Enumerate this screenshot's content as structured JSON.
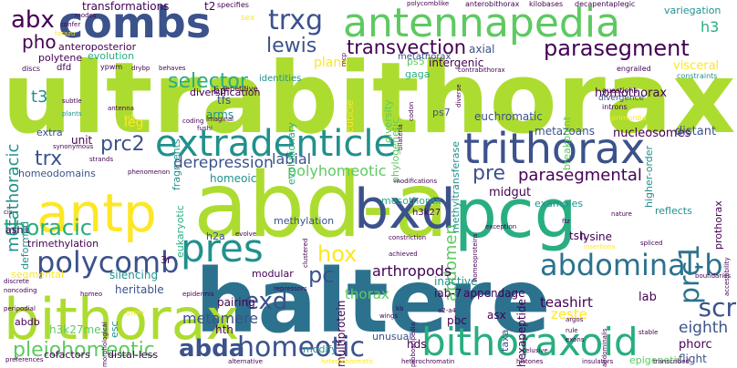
{
  "palette": [
    "#440154",
    "#3b528b",
    "#2c728e",
    "#21918c",
    "#28ae80",
    "#5ec962",
    "#addc30",
    "#fde725"
  ],
  "words": [
    {
      "text": "ultrabithorax",
      "color": "#addc30"
    },
    {
      "text": "haltere",
      "color": "#2c728e"
    },
    {
      "text": "abd-a",
      "color": "#addc30"
    },
    {
      "text": "bithorax",
      "color": "#addc30"
    },
    {
      "text": "antennapedia",
      "color": "#5ec962"
    },
    {
      "text": "combs",
      "color": "#3b528b"
    },
    {
      "text": "pcg",
      "color": "#28ae80"
    },
    {
      "text": "bxd",
      "color": "#3b528b"
    },
    {
      "text": "antp",
      "color": "#fde725"
    },
    {
      "text": "trithorax",
      "color": "#3b528b"
    },
    {
      "text": "extradenticle",
      "color": "#21918c"
    },
    {
      "text": "bithoraxoid",
      "color": "#28ae80"
    },
    {
      "text": "pres",
      "color": "#21918c"
    },
    {
      "text": "abdominal-b",
      "color": "#2c728e"
    },
    {
      "text": "polycomb",
      "color": "#3b528b"
    },
    {
      "text": "parasegment",
      "color": "#440154"
    },
    {
      "text": "homeotic",
      "color": "#3b528b"
    },
    {
      "text": "abda",
      "color": "#3b528b"
    },
    {
      "text": "pleiohomeotic",
      "color": "#5ec962"
    },
    {
      "text": "thoracic",
      "color": "#28ae80"
    },
    {
      "text": "hox",
      "color": "#fde725"
    },
    {
      "text": "trxg",
      "color": "#3b528b"
    },
    {
      "text": "selector",
      "color": "#28ae80"
    },
    {
      "text": "transvection",
      "color": "#440154"
    },
    {
      "text": "prc2",
      "color": "#3b528b"
    },
    {
      "text": "trx",
      "color": "#3b528b"
    },
    {
      "text": "pc",
      "color": "#3b528b"
    },
    {
      "text": "exd",
      "color": "#3b528b"
    },
    {
      "text": "prc1",
      "color": "#2c728e"
    },
    {
      "text": "scr",
      "color": "#3b528b"
    },
    {
      "text": "abx",
      "color": "#440154"
    },
    {
      "text": "pho",
      "color": "#440154"
    },
    {
      "text": "lewis",
      "color": "#3b528b"
    },
    {
      "text": "metathoracic",
      "color": "#21918c"
    },
    {
      "text": "derepression",
      "color": "#3b528b"
    },
    {
      "text": "polyhomeotic",
      "color": "#5ec962"
    },
    {
      "text": "labial",
      "color": "#3b528b"
    },
    {
      "text": "parasegmental",
      "color": "#440154"
    },
    {
      "text": "pre",
      "color": "#3b528b"
    },
    {
      "text": "abdomen",
      "color": "#5ec962"
    },
    {
      "text": "metamere",
      "color": "#3b528b"
    },
    {
      "text": "eighth",
      "color": "#3b528b"
    },
    {
      "text": "arthropods",
      "color": "#440154"
    },
    {
      "text": "teashirt",
      "color": "#440154"
    },
    {
      "text": "thorax",
      "color": "#5ec962"
    },
    {
      "text": "zeste",
      "color": "#fde725"
    },
    {
      "text": "transformations",
      "color": "#440154"
    },
    {
      "text": "homothorax",
      "color": "#440154"
    },
    {
      "text": "euchromatic",
      "color": "#3b528b"
    },
    {
      "text": "metazoans",
      "color": "#3b528b"
    },
    {
      "text": "nucleosomes",
      "color": "#440154"
    },
    {
      "text": "distant",
      "color": "#3b528b"
    },
    {
      "text": "midgut",
      "color": "#440154"
    },
    {
      "text": "lysine",
      "color": "#440154"
    },
    {
      "text": "hexapeptide",
      "color": "#440154"
    },
    {
      "text": "multiprotein",
      "color": "#440154"
    },
    {
      "text": "hth",
      "color": "#440154"
    },
    {
      "text": "h3k27me3",
      "color": "#5ec962"
    },
    {
      "text": "cofactors",
      "color": "#440154"
    },
    {
      "text": "distal-less",
      "color": "#440154"
    },
    {
      "text": "prothorax",
      "color": "#440154"
    },
    {
      "text": "phorc",
      "color": "#440154"
    },
    {
      "text": "flight",
      "color": "#3b528b"
    },
    {
      "text": "epigenetic",
      "color": "#5ec962"
    },
    {
      "text": "lab",
      "color": "#440154"
    },
    {
      "text": "h3",
      "color": "#28ae80"
    },
    {
      "text": "t2",
      "color": "#440154"
    },
    {
      "text": "t3",
      "color": "#21918c"
    },
    {
      "text": "unit",
      "color": "#440154"
    },
    {
      "text": "homeoic",
      "color": "#21918c"
    },
    {
      "text": "homeodomains",
      "color": "#3b528b"
    },
    {
      "text": "ash1",
      "color": "#440154"
    },
    {
      "text": "deformed",
      "color": "#21918c"
    },
    {
      "text": "visceral",
      "color": "#fde725"
    },
    {
      "text": "higher-order",
      "color": "#21918c"
    },
    {
      "text": "variegation",
      "color": "#21918c"
    },
    {
      "text": "intergenic",
      "color": "#440154"
    },
    {
      "text": "plans",
      "color": "#fde725"
    },
    {
      "text": "evolution",
      "color": "#28ae80"
    },
    {
      "text": "diversification",
      "color": "#440154"
    },
    {
      "text": "anteroposterior",
      "color": "#440154"
    },
    {
      "text": "polytene",
      "color": "#440154"
    },
    {
      "text": "leg",
      "color": "#fde725"
    },
    {
      "text": "extra",
      "color": "#3b528b"
    },
    {
      "text": "arms",
      "color": "#21918c"
    },
    {
      "text": "tfs",
      "color": "#3b528b"
    },
    {
      "text": "bp",
      "color": "#440154"
    },
    {
      "text": "fragments",
      "color": "#21918c"
    },
    {
      "text": "ps7",
      "color": "#3b528b"
    },
    {
      "text": "ps5",
      "color": "#5ec962"
    },
    {
      "text": "gaga",
      "color": "#28ae80"
    },
    {
      "text": "diversity",
      "color": "#5ec962"
    },
    {
      "text": "phylogenetic",
      "color": "#5ec962"
    },
    {
      "text": "cuticle",
      "color": "#fde725"
    },
    {
      "text": "evolutionary",
      "color": "#28ae80"
    },
    {
      "text": "methyltransferase",
      "color": "#21918c"
    },
    {
      "text": "metathorax",
      "color": "#3b528b"
    },
    {
      "text": "axial",
      "color": "#3b528b"
    },
    {
      "text": "methylation",
      "color": "#3b528b"
    },
    {
      "text": "h3k27",
      "color": "#440154"
    },
    {
      "text": "mesothorax",
      "color": "#28ae80"
    },
    {
      "text": "eukaryotic",
      "color": "#28ae80"
    },
    {
      "text": "h2a",
      "color": "#3b528b"
    },
    {
      "text": "trimethylation",
      "color": "#440154"
    },
    {
      "text": "segmental",
      "color": "#fde725"
    },
    {
      "text": "silencing",
      "color": "#21918c"
    },
    {
      "text": "heritable",
      "color": "#3b528b"
    },
    {
      "text": "modular",
      "color": "#440154"
    },
    {
      "text": "pairing",
      "color": "#440154"
    },
    {
      "text": "inactive",
      "color": "#21918c"
    },
    {
      "text": "iab-7",
      "color": "#440154"
    },
    {
      "text": "appendage",
      "color": "#440154"
    },
    {
      "text": "tsh",
      "color": "#440154"
    },
    {
      "text": "examples",
      "color": "#21918c"
    },
    {
      "text": "reflects",
      "color": "#21918c"
    },
    {
      "text": "pbc",
      "color": "#440154"
    },
    {
      "text": "asx",
      "color": "#440154"
    },
    {
      "text": "taxa",
      "color": "#3b528b"
    },
    {
      "text": "hds",
      "color": "#440154"
    },
    {
      "text": "unusual",
      "color": "#3b528b"
    },
    {
      "text": "modify",
      "color": "#21918c"
    },
    {
      "text": "abdb",
      "color": "#440154"
    },
    {
      "text": "esc",
      "color": "#21918c"
    },
    {
      "text": "3r",
      "color": "#440154"
    },
    {
      "text": "repetitive",
      "color": "#440154"
    },
    {
      "text": "identities",
      "color": "#21918c"
    },
    {
      "text": "specifies",
      "color": "#440154"
    },
    {
      "text": "kilobases",
      "color": "#440154"
    },
    {
      "text": "decapentaplegic",
      "color": "#440154"
    },
    {
      "text": "polycomblike",
      "color": "#440154"
    },
    {
      "text": "anterobithorax",
      "color": "#440154"
    },
    {
      "text": "contrabithorax",
      "color": "#440154"
    },
    {
      "text": "engrailed",
      "color": "#440154"
    },
    {
      "text": "constraints",
      "color": "#21918c"
    },
    {
      "text": "breakpoint",
      "color": "#5ec962"
    },
    {
      "text": "questions",
      "color": "#440154"
    },
    {
      "text": "divergence",
      "color": "#3b528b"
    },
    {
      "text": "introns",
      "color": "#440154"
    },
    {
      "text": "primordia",
      "color": "#fde725"
    },
    {
      "text": "modes",
      "color": "#440154"
    },
    {
      "text": "confer",
      "color": "#440154"
    },
    {
      "text": "tarazu",
      "color": "#fde725"
    },
    {
      "text": "discs",
      "color": "#440154"
    },
    {
      "text": "dfd",
      "color": "#440154"
    },
    {
      "text": "ypwm",
      "color": "#440154"
    },
    {
      "text": "drybp",
      "color": "#440154"
    },
    {
      "text": "behaves",
      "color": "#440154"
    },
    {
      "text": "subtle",
      "color": "#440154"
    },
    {
      "text": "plants",
      "color": "#21918c"
    },
    {
      "text": "antenna",
      "color": "#440154"
    },
    {
      "text": "scb",
      "color": "#fde725"
    },
    {
      "text": "fushi",
      "color": "#440154"
    },
    {
      "text": "coding",
      "color": "#440154"
    },
    {
      "text": "imaginal",
      "color": "#440154"
    },
    {
      "text": "synonymous",
      "color": "#440154"
    },
    {
      "text": "strands",
      "color": "#440154"
    },
    {
      "text": "phenomenon",
      "color": "#440154"
    },
    {
      "text": "evolve",
      "color": "#440154"
    },
    {
      "text": "clustered",
      "color": "#440154"
    },
    {
      "text": "modifications",
      "color": "#440154"
    },
    {
      "text": "constriction",
      "color": "#440154"
    },
    {
      "text": "achieved",
      "color": "#440154"
    },
    {
      "text": "repressors",
      "color": "#440154"
    },
    {
      "text": "homeoproteins",
      "color": "#440154"
    },
    {
      "text": "exception",
      "color": "#440154"
    },
    {
      "text": "ftz",
      "color": "#440154"
    },
    {
      "text": "nature",
      "color": "#440154"
    },
    {
      "text": "spliced",
      "color": "#440154"
    },
    {
      "text": "insertions",
      "color": "#fde725"
    },
    {
      "text": "boundaries",
      "color": "#440154"
    },
    {
      "text": "accessibility",
      "color": "#440154"
    },
    {
      "text": "cis",
      "color": "#440154"
    },
    {
      "text": "discrete",
      "color": "#440154"
    },
    {
      "text": "noncoding",
      "color": "#440154"
    },
    {
      "text": "homeo",
      "color": "#440154"
    },
    {
      "text": "epidermis",
      "color": "#440154"
    },
    {
      "text": "peripodial",
      "color": "#440154"
    },
    {
      "text": "morphological",
      "color": "#440154"
    },
    {
      "text": "gypsy",
      "color": "#fde725"
    },
    {
      "text": "wings",
      "color": "#440154"
    },
    {
      "text": "kb",
      "color": "#440154"
    },
    {
      "text": "proboscipedia",
      "color": "#440154"
    },
    {
      "text": "a2-a4",
      "color": "#440154"
    },
    {
      "text": "argos",
      "color": "#440154"
    },
    {
      "text": "rule",
      "color": "#440154"
    },
    {
      "text": "exons",
      "color": "#440154"
    },
    {
      "text": "stable",
      "color": "#440154"
    },
    {
      "text": "abdominalis",
      "color": "#440154"
    },
    {
      "text": "elusive",
      "color": "#440154"
    },
    {
      "text": "preferences",
      "color": "#440154"
    },
    {
      "text": "alternative",
      "color": "#440154"
    },
    {
      "text": "heterochromatic",
      "color": "#fde725"
    },
    {
      "text": "heterochromatin",
      "color": "#440154"
    },
    {
      "text": "histones",
      "color": "#440154"
    },
    {
      "text": "insulators",
      "color": "#440154"
    },
    {
      "text": "transcribed",
      "color": "#440154"
    },
    {
      "text": "sex",
      "color": "#fde725"
    },
    {
      "text": "mcp",
      "color": "#440154"
    },
    {
      "text": "codon",
      "color": "#440154"
    },
    {
      "text": "bilateria",
      "color": "#440154"
    },
    {
      "text": "diverse",
      "color": "#440154"
    }
  ]
}
